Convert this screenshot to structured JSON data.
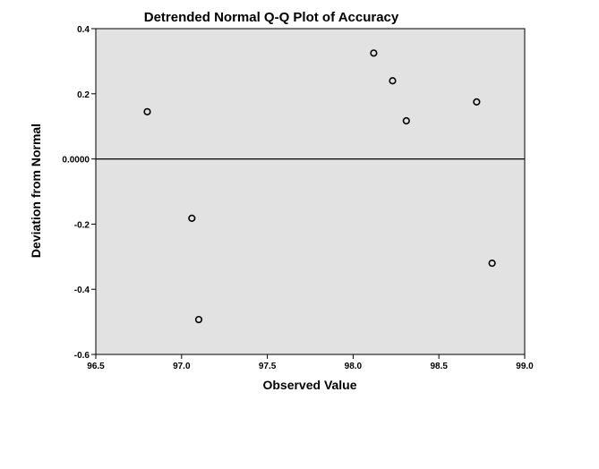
{
  "chart_data": {
    "type": "scatter",
    "title": "Detrended Normal Q-Q Plot of Accuracy",
    "xlabel": "Observed Value",
    "ylabel": "Deviation from Normal",
    "xlim": [
      96.5,
      99.0
    ],
    "ylim": [
      -0.6,
      0.4
    ],
    "xticks": [
      96.5,
      97.0,
      97.5,
      98.0,
      98.5,
      99.0
    ],
    "xtick_labels": [
      "96.5",
      "97.0",
      "97.5",
      "98.0",
      "98.5",
      "99.0"
    ],
    "yticks": [
      0.4,
      0.2,
      0.0,
      -0.2,
      -0.4,
      -0.6
    ],
    "ytick_labels": [
      "0.4",
      "0.2",
      "0.0000",
      "-0.2",
      "-0.4",
      "-0.6"
    ],
    "reference_line": 0.0,
    "grid": false,
    "points": [
      {
        "x": 96.8,
        "y": 0.145
      },
      {
        "x": 97.06,
        "y": -0.182
      },
      {
        "x": 97.1,
        "y": -0.493
      },
      {
        "x": 98.12,
        "y": 0.325
      },
      {
        "x": 98.23,
        "y": 0.24
      },
      {
        "x": 98.31,
        "y": 0.117
      },
      {
        "x": 98.72,
        "y": 0.175
      },
      {
        "x": 98.81,
        "y": -0.32
      }
    ],
    "colors": {
      "plot_background": "#e2e2e2",
      "marker_fill": "#e2e2e2",
      "marker_stroke": "#000000",
      "axis": "#000000"
    }
  }
}
